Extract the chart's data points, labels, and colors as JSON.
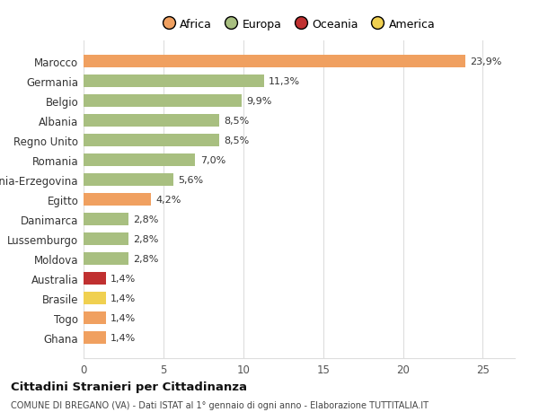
{
  "categories": [
    "Ghana",
    "Togo",
    "Brasile",
    "Australia",
    "Moldova",
    "Lussemburgo",
    "Danimarca",
    "Egitto",
    "Bosnia-Erzegovina",
    "Romania",
    "Regno Unito",
    "Albania",
    "Belgio",
    "Germania",
    "Marocco"
  ],
  "values": [
    1.4,
    1.4,
    1.4,
    1.4,
    2.8,
    2.8,
    2.8,
    4.2,
    5.6,
    7.0,
    8.5,
    8.5,
    9.9,
    11.3,
    23.9
  ],
  "colors": [
    "#F0A060",
    "#F0A060",
    "#F0D050",
    "#C03030",
    "#A8BF80",
    "#A8BF80",
    "#A8BF80",
    "#F0A060",
    "#A8BF80",
    "#A8BF80",
    "#A8BF80",
    "#A8BF80",
    "#A8BF80",
    "#A8BF80",
    "#F0A060"
  ],
  "labels": [
    "1,4%",
    "1,4%",
    "1,4%",
    "1,4%",
    "2,8%",
    "2,8%",
    "2,8%",
    "4,2%",
    "5,6%",
    "7,0%",
    "8,5%",
    "8,5%",
    "9,9%",
    "11,3%",
    "23,9%"
  ],
  "legend": [
    {
      "label": "Africa",
      "color": "#F0A060"
    },
    {
      "label": "Europa",
      "color": "#A8BF80"
    },
    {
      "label": "Oceania",
      "color": "#C03030"
    },
    {
      "label": "America",
      "color": "#F0D050"
    }
  ],
  "title": "Cittadini Stranieri per Cittadinanza",
  "subtitle": "COMUNE DI BREGANO (VA) - Dati ISTAT al 1° gennaio di ogni anno - Elaborazione TUTTITALIA.IT",
  "xlim": [
    0,
    27
  ],
  "xticks": [
    0,
    5,
    10,
    15,
    20,
    25
  ],
  "bg_color": "#ffffff",
  "grid_color": "#dddddd"
}
